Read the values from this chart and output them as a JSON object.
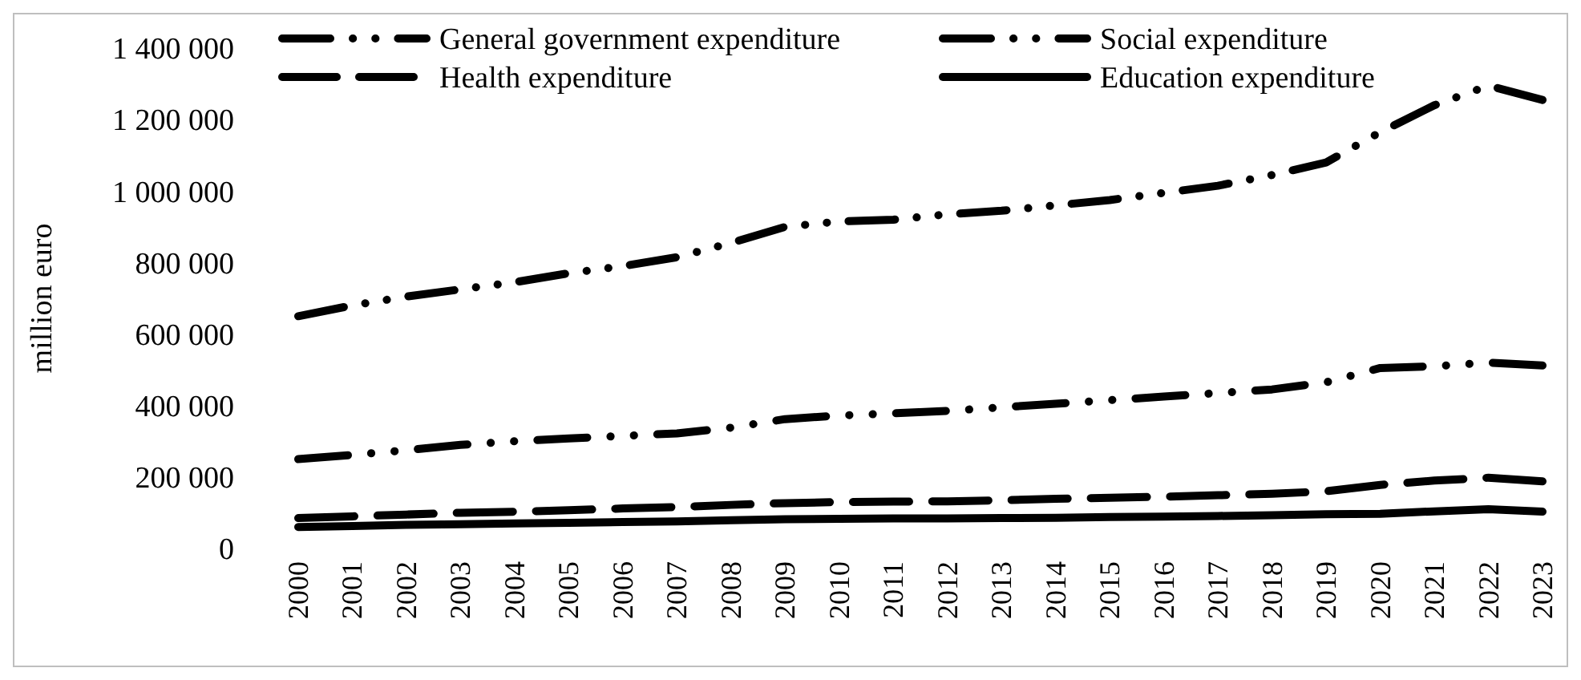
{
  "chart_data": {
    "type": "line",
    "ylabel": "million euro",
    "categories": [
      "2000",
      "2001",
      "2002",
      "2003",
      "2004",
      "2005",
      "2006",
      "2007",
      "2008",
      "2009",
      "2010",
      "2011",
      "2012",
      "2013",
      "2014",
      "2015",
      "2016",
      "2017",
      "2018",
      "2019",
      "2020",
      "2021",
      "2022",
      "2023"
    ],
    "series": [
      {
        "name": "General government expenditure",
        "color": "#000000",
        "line_style": "dashdot",
        "values": [
          650000,
          680000,
          705000,
          725000,
          745000,
          770000,
          790000,
          815000,
          855000,
          900000,
          915000,
          920000,
          935000,
          945000,
          960000,
          975000,
          995000,
          1015000,
          1045000,
          1080000,
          1165000,
          1240000,
          1295000,
          1255000
        ]
      },
      {
        "name": "Social expenditure",
        "color": "#000000",
        "line_style": "dashdot",
        "values": [
          250000,
          262000,
          275000,
          290000,
          300000,
          308000,
          315000,
          322000,
          338000,
          362000,
          372000,
          378000,
          385000,
          395000,
          405000,
          415000,
          425000,
          435000,
          445000,
          465000,
          505000,
          510000,
          520000,
          512000
        ]
      },
      {
        "name": "Health expenditure",
        "color": "#000000",
        "line_style": "dashed",
        "values": [
          85000,
          90000,
          95000,
          100000,
          103000,
          107000,
          112000,
          116000,
          122000,
          127000,
          130000,
          131000,
          132000,
          135000,
          139000,
          142000,
          145000,
          149000,
          153000,
          160000,
          178000,
          190000,
          198000,
          188000
        ]
      },
      {
        "name": "Education expenditure",
        "color": "#000000",
        "line_style": "solid",
        "values": [
          60000,
          63000,
          66000,
          68000,
          70000,
          72000,
          74000,
          76000,
          79000,
          82000,
          83000,
          84000,
          84000,
          85000,
          86000,
          88000,
          89000,
          91000,
          93000,
          96000,
          97000,
          104000,
          110000,
          103000
        ]
      }
    ],
    "ylim": [
      0,
      1400000
    ],
    "yticks": [
      {
        "value": 0,
        "label": "0"
      },
      {
        "value": 200000,
        "label": "200 000"
      },
      {
        "value": 400000,
        "label": "400 000"
      },
      {
        "value": 600000,
        "label": "600 000"
      },
      {
        "value": 800000,
        "label": "800 000"
      },
      {
        "value": 1000000,
        "label": "1 000 000"
      },
      {
        "value": 1200000,
        "label": "1 200 000"
      },
      {
        "value": 1400000,
        "label": "1 400 000"
      }
    ],
    "grid": false,
    "legend": "top",
    "marker": "none"
  }
}
